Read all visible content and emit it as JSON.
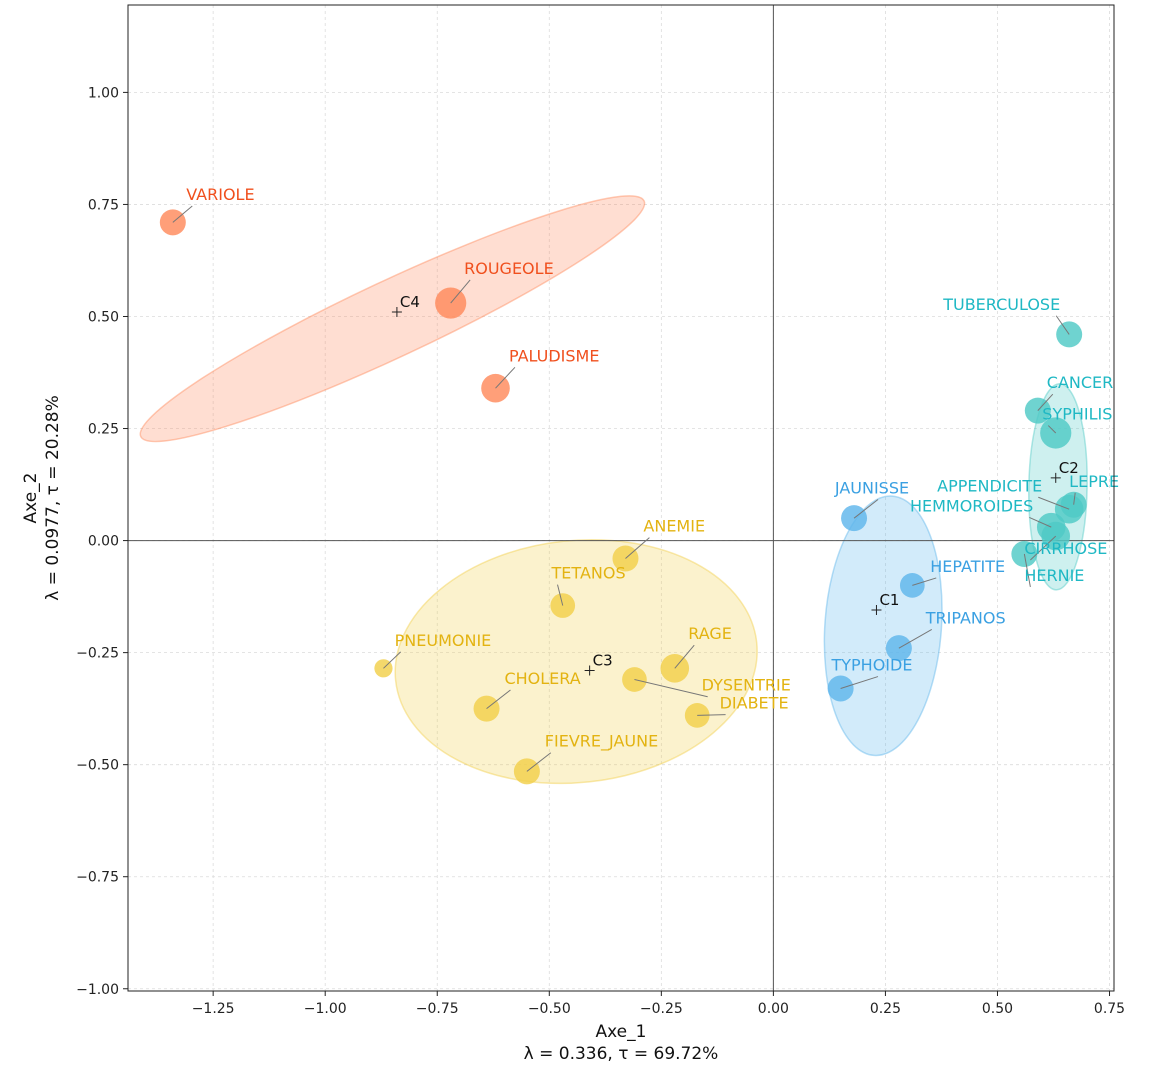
{
  "chart_data": {
    "type": "scatter",
    "xlabel": "Axe_1",
    "xlabel_sub": "λ = 0.336, τ = 69.72%",
    "ylabel": "Axe_2",
    "ylabel_sub": "λ = 0.0977, τ = 20.28%",
    "xlim": [
      -1.44,
      0.76
    ],
    "ylim": [
      -1.005,
      1.195
    ],
    "xticks": [
      -1.25,
      -1.0,
      -0.75,
      -0.5,
      -0.25,
      0.0,
      0.25,
      0.5,
      0.75
    ],
    "xtick_labels": [
      "−1.25",
      "−1.00",
      "−0.75",
      "−0.50",
      "−0.25",
      "0.00",
      "0.25",
      "0.50",
      "0.75"
    ],
    "yticks": [
      1.0,
      0.75,
      0.5,
      0.25,
      0.0,
      -0.25,
      -0.5,
      -0.75,
      -1.0
    ],
    "ytick_labels": [
      "1.00",
      "0.75",
      "0.50",
      "0.25",
      "0.00",
      "−0.25",
      "−0.50",
      "−0.75",
      "−1.00"
    ],
    "grid": true,
    "clusters": [
      {
        "centroid": "C4",
        "color": "#ff8a5c",
        "label_color": "#f0501e",
        "centroid_pos": [
          -0.84,
          0.51
        ],
        "ellipse": {
          "cx": -0.85,
          "cy": 0.495,
          "rx": 0.62,
          "ry": 0.085,
          "angle_deg": -25.1
        },
        "points": [
          {
            "name": "VARIOLE",
            "x": -1.34,
            "y": 0.71,
            "size": 1.0
          },
          {
            "name": "ROUGEOLE",
            "x": -0.72,
            "y": 0.53,
            "size": 1.2
          },
          {
            "name": "PALUDISME",
            "x": -0.62,
            "y": 0.34,
            "size": 1.1
          }
        ]
      },
      {
        "centroid": "C2",
        "color": "#4fc9c6",
        "label_color": "#1fb8c4",
        "centroid_pos": [
          0.63,
          0.14
        ],
        "ellipse": {
          "cx": 0.635,
          "cy": 0.12,
          "rx": 0.23,
          "ry": 0.065,
          "angle_deg": 91
        },
        "points": [
          {
            "name": "TUBERCULOSE",
            "x": 0.66,
            "y": 0.46,
            "size": 1.0
          },
          {
            "name": "CANCER",
            "x": 0.59,
            "y": 0.29,
            "size": 1.0
          },
          {
            "name": "SYPHILIS",
            "x": 0.63,
            "y": 0.24,
            "size": 1.2
          },
          {
            "name": "APPENDICITE",
            "x": 0.66,
            "y": 0.07,
            "size": 1.1
          },
          {
            "name": "LEPRE",
            "x": 0.67,
            "y": 0.08,
            "size": 1.0
          },
          {
            "name": "HEMMOROIDES",
            "x": 0.62,
            "y": 0.03,
            "size": 1.1
          },
          {
            "name": "CIRRHOSE",
            "x": 0.63,
            "y": 0.01,
            "size": 1.1
          },
          {
            "name": "HERNIE",
            "x": 0.56,
            "y": -0.03,
            "size": 1.0
          }
        ]
      },
      {
        "centroid": "C1",
        "color": "#5fb6ec",
        "label_color": "#3aa0e2",
        "centroid_pos": [
          0.23,
          -0.155
        ],
        "ellipse": {
          "cx": 0.245,
          "cy": -0.19,
          "rx": 0.13,
          "ry": 0.29,
          "angle_deg": 4
        },
        "points": [
          {
            "name": "JAUNISSE",
            "x": 0.18,
            "y": 0.05,
            "size": 1.0
          },
          {
            "name": "HEPATITE",
            "x": 0.31,
            "y": -0.1,
            "size": 0.95
          },
          {
            "name": "TRIPANOS",
            "x": 0.28,
            "y": -0.24,
            "size": 1.0
          },
          {
            "name": "TYPHOIDE",
            "x": 0.15,
            "y": -0.33,
            "size": 1.0
          }
        ]
      },
      {
        "centroid": "C3",
        "color": "#f2cf4a",
        "label_color": "#e3b311",
        "centroid_pos": [
          -0.41,
          -0.29
        ],
        "ellipse": {
          "cx": -0.44,
          "cy": -0.27,
          "rx": 0.405,
          "ry": 0.27,
          "angle_deg": -6
        },
        "points": [
          {
            "name": "ANEMIE",
            "x": -0.33,
            "y": -0.04,
            "size": 1.0
          },
          {
            "name": "TETANOS",
            "x": -0.47,
            "y": -0.145,
            "size": 0.95
          },
          {
            "name": "PNEUMONIE",
            "x": -0.87,
            "y": -0.285,
            "size": 0.7
          },
          {
            "name": "RAGE",
            "x": -0.22,
            "y": -0.285,
            "size": 1.1
          },
          {
            "name": "CHOLERA",
            "x": -0.64,
            "y": -0.375,
            "size": 1.0
          },
          {
            "name": "DYSENTRIE",
            "x": -0.31,
            "y": -0.31,
            "size": 0.95
          },
          {
            "name": "DIABETE",
            "x": -0.17,
            "y": -0.39,
            "size": 0.95
          },
          {
            "name": "FIEVRE_JAUNE",
            "x": -0.55,
            "y": -0.515,
            "size": 1.0
          }
        ]
      }
    ],
    "label_offsets": {
      "VARIOLE": [
        0.03,
        0.05,
        "start"
      ],
      "ROUGEOLE": [
        0.03,
        0.065,
        "start"
      ],
      "PALUDISME": [
        0.03,
        0.06,
        "start"
      ],
      "TUBERCULOSE": [
        -0.02,
        0.055,
        "end"
      ],
      "CANCER": [
        0.02,
        0.05,
        "start"
      ],
      "SYPHILIS": [
        -0.03,
        0.03,
        "start"
      ],
      "APPENDICITE": [
        -0.06,
        0.04,
        "end"
      ],
      "LEPRE": [
        -0.01,
        0.04,
        "start"
      ],
      "HEMMOROIDES": [
        -0.04,
        0.035,
        "end"
      ],
      "CIRRHOSE": [
        -0.07,
        -0.04,
        "start"
      ],
      "HERNIE": [
        0.0,
        -0.06,
        "start"
      ],
      "JAUNISSE": [
        0.04,
        0.055,
        "middle"
      ],
      "HEPATITE": [
        0.04,
        0.03,
        "start"
      ],
      "TRIPANOS": [
        0.06,
        0.055,
        "start"
      ],
      "TYPHOIDE": [
        0.07,
        0.04,
        "middle"
      ],
      "ANEMIE": [
        0.04,
        0.06,
        "start"
      ],
      "TETANOS": [
        -0.025,
        0.06,
        "start"
      ],
      "PNEUMONIE": [
        0.025,
        0.05,
        "start"
      ],
      "RAGE": [
        0.03,
        0.065,
        "start"
      ],
      "CHOLERA": [
        0.04,
        0.055,
        "start"
      ],
      "DYSENTRIE": [
        0.15,
        -0.025,
        "start"
      ],
      "DIABETE": [
        0.05,
        0.015,
        "start"
      ],
      "FIEVRE_JAUNE": [
        0.04,
        0.055,
        "start"
      ]
    }
  }
}
